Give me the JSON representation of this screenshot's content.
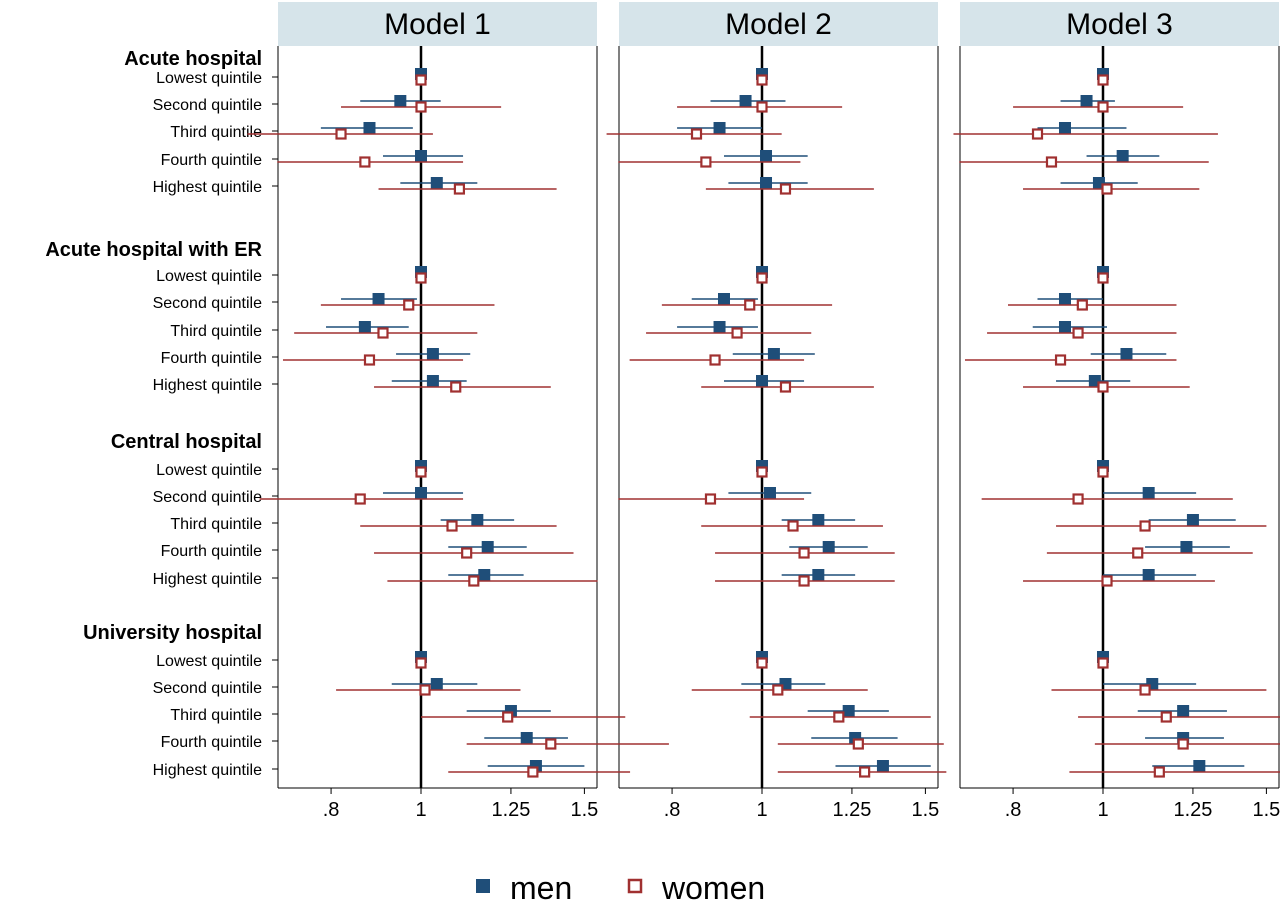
{
  "chart_data": {
    "type": "scatter",
    "panels": [
      "Model 1",
      "Model 2",
      "Model 3"
    ],
    "groups": [
      "Acute hospital",
      "Acute hospital with ER",
      "Central hospital",
      "University hospital"
    ],
    "rows": [
      "Lowest quintile",
      "Second quintile",
      "Third quintile",
      "Fourth quintile",
      "Highest quintile"
    ],
    "x_scale": "log",
    "x_ticks": [
      0.8,
      1,
      1.25,
      1.5
    ],
    "x_tick_labels": [
      ".8",
      "1",
      "1.25",
      "1.5"
    ],
    "reference_line": 1,
    "series": [
      {
        "name": "men",
        "color": "#1f4e79",
        "marker": "filled-square",
        "models": [
          {
            "estimates": [
              [
                1.0,
                0.95,
                0.88,
                1.0,
                1.04
              ],
              [
                1.0,
                0.9,
                0.87,
                1.03,
                1.03
              ],
              [
                1.0,
                1.0,
                1.15,
                1.18,
                1.17
              ],
              [
                1.0,
                1.04,
                1.25,
                1.3,
                1.33
              ]
            ],
            "ci_low": [
              [
                1.0,
                0.86,
                0.78,
                0.91,
                0.95
              ],
              [
                1.0,
                0.82,
                0.79,
                0.94,
                0.93
              ],
              [
                1.0,
                0.91,
                1.05,
                1.07,
                1.07
              ],
              [
                1.0,
                0.93,
                1.12,
                1.17,
                1.18
              ]
            ],
            "ci_high": [
              [
                1.0,
                1.05,
                0.98,
                1.11,
                1.15
              ],
              [
                1.0,
                0.99,
                0.97,
                1.13,
                1.12
              ],
              [
                1.0,
                1.11,
                1.26,
                1.3,
                1.29
              ],
              [
                1.0,
                1.15,
                1.38,
                1.44,
                1.5
              ]
            ]
          },
          {
            "estimates": [
              [
                1.0,
                0.96,
                0.9,
                1.01,
                1.01
              ],
              [
                1.0,
                0.91,
                0.9,
                1.03,
                1.0
              ],
              [
                1.0,
                1.02,
                1.15,
                1.18,
                1.15
              ],
              [
                1.0,
                1.06,
                1.24,
                1.26,
                1.35
              ]
            ],
            "ci_low": [
              [
                1.0,
                0.88,
                0.81,
                0.91,
                0.92
              ],
              [
                1.0,
                0.84,
                0.81,
                0.93,
                0.91
              ],
              [
                1.0,
                0.92,
                1.05,
                1.07,
                1.05
              ],
              [
                1.0,
                0.95,
                1.12,
                1.13,
                1.2
              ]
            ],
            "ci_high": [
              [
                1.0,
                1.06,
                1.0,
                1.12,
                1.12
              ],
              [
                1.0,
                0.99,
                0.99,
                1.14,
                1.11
              ],
              [
                1.0,
                1.13,
                1.26,
                1.3,
                1.26
              ],
              [
                1.0,
                1.17,
                1.37,
                1.4,
                1.52
              ]
            ]
          },
          {
            "estimates": [
              [
                1.0,
                0.96,
                0.91,
                1.05,
                0.99
              ],
              [
                1.0,
                0.91,
                0.91,
                1.06,
                0.98
              ],
              [
                1.0,
                1.12,
                1.25,
                1.23,
                1.12
              ],
              [
                1.0,
                1.13,
                1.22,
                1.22,
                1.27
              ]
            ],
            "ci_low": [
              [
                1.0,
                0.9,
                0.85,
                0.96,
                0.9
              ],
              [
                1.0,
                0.85,
                0.84,
                0.97,
                0.89
              ],
              [
                1.0,
                1.0,
                1.12,
                1.11,
                1.0
              ],
              [
                1.0,
                1.0,
                1.09,
                1.11,
                1.13
              ]
            ],
            "ci_high": [
              [
                1.0,
                1.03,
                1.06,
                1.15,
                1.09
              ],
              [
                1.0,
                1.0,
                1.01,
                1.17,
                1.07
              ],
              [
                1.0,
                1.26,
                1.39,
                1.37,
                1.26
              ],
              [
                1.0,
                1.26,
                1.36,
                1.35,
                1.42
              ]
            ]
          }
        ]
      },
      {
        "name": "women",
        "color": "#a03030",
        "marker": "hollow-square",
        "models": [
          {
            "estimates": [
              [
                1.0,
                1.0,
                0.82,
                0.87,
                1.1
              ],
              [
                1.0,
                0.97,
                0.91,
                0.88,
                1.09
              ],
              [
                1.0,
                0.86,
                1.08,
                1.12,
                1.14
              ],
              [
                1.0,
                1.01,
                1.24,
                1.38,
                1.32
              ]
            ],
            "ci_low": [
              [
                1.0,
                0.82,
                0.65,
                0.7,
                0.9
              ],
              [
                1.0,
                0.78,
                0.73,
                0.71,
                0.89
              ],
              [
                1.0,
                0.67,
                0.86,
                0.89,
                0.92
              ],
              [
                1.0,
                0.81,
                1.0,
                1.12,
                1.07
              ]
            ],
            "ci_high": [
              [
                1.0,
                1.22,
                1.03,
                1.11,
                1.4
              ],
              [
                1.0,
                1.2,
                1.15,
                1.11,
                1.38
              ],
              [
                1.0,
                1.11,
                1.4,
                1.46,
                1.55
              ],
              [
                1.0,
                1.28,
                1.66,
                1.85,
                1.68
              ]
            ]
          },
          {
            "estimates": [
              [
                1.0,
                1.0,
                0.85,
                0.87,
                1.06
              ],
              [
                1.0,
                0.97,
                0.94,
                0.89,
                1.06
              ],
              [
                1.0,
                0.88,
                1.08,
                1.11,
                1.11
              ],
              [
                1.0,
                1.04,
                1.21,
                1.27,
                1.29
              ]
            ],
            "ci_low": [
              [
                1.0,
                0.81,
                0.68,
                0.7,
                0.87
              ],
              [
                1.0,
                0.78,
                0.75,
                0.72,
                0.86
              ],
              [
                1.0,
                0.7,
                0.86,
                0.89,
                0.89
              ],
              [
                1.0,
                0.84,
                0.97,
                1.04,
                1.04
              ]
            ],
            "ci_high": [
              [
                1.0,
                1.22,
                1.05,
                1.1,
                1.32
              ],
              [
                1.0,
                1.19,
                1.13,
                1.11,
                1.32
              ],
              [
                1.0,
                1.11,
                1.35,
                1.39,
                1.39
              ],
              [
                1.0,
                1.3,
                1.52,
                1.57,
                1.58
              ]
            ]
          },
          {
            "estimates": [
              [
                1.0,
                1.0,
                0.85,
                0.88,
                1.01
              ],
              [
                1.0,
                0.95,
                0.94,
                0.9,
                1.0
              ],
              [
                1.0,
                0.94,
                1.11,
                1.09,
                1.01
              ],
              [
                1.0,
                1.11,
                1.17,
                1.22,
                1.15
              ]
            ],
            "ci_low": [
              [
                1.0,
                0.8,
                0.69,
                0.7,
                0.82
              ],
              [
                1.0,
                0.79,
                0.75,
                0.71,
                0.82
              ],
              [
                1.0,
                0.74,
                0.89,
                0.87,
                0.82
              ],
              [
                1.0,
                0.88,
                0.94,
                0.98,
                0.92
              ]
            ],
            "ci_high": [
              [
                1.0,
                1.22,
                1.33,
                1.3,
                1.27
              ],
              [
                1.0,
                1.2,
                1.2,
                1.2,
                1.24
              ],
              [
                1.0,
                1.38,
                1.5,
                1.45,
                1.32
              ],
              [
                1.0,
                1.5,
                1.56,
                1.6,
                1.56
              ]
            ]
          }
        ]
      }
    ],
    "legend": [
      "men",
      "women"
    ],
    "legend_position": "bottom",
    "title": "",
    "xlabel": "",
    "ylabel": ""
  }
}
